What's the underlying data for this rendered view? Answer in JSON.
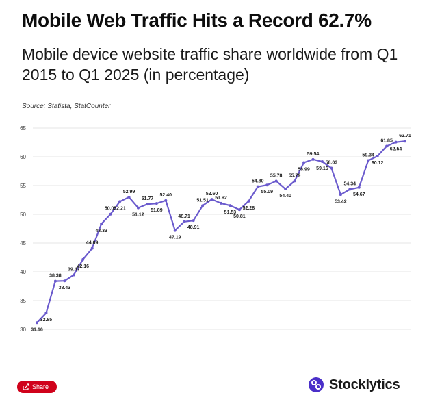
{
  "header": {
    "title": "Mobile Web Traffic Hits a Record 62.7%",
    "subtitle": "Mobile device website traffic share worldwide from Q1 2015 to Q1 2025 (in percentage)",
    "source": "Source; Statista, StatCounter"
  },
  "footer": {
    "share_label": "Share",
    "brand": "Stocklytics"
  },
  "colors": {
    "line": "#6a5acd",
    "grid": "#e6e6e6",
    "share_button": "#d0021b"
  },
  "chart_data": {
    "type": "line",
    "ylim": [
      30,
      65
    ],
    "yticks": [
      30,
      35,
      40,
      45,
      50,
      55,
      60,
      65
    ],
    "grid": "horizontal",
    "legend": "none",
    "x_range": [
      "Q1 2015",
      "Q1 2025"
    ],
    "x_tick_labels": "none",
    "series": [
      {
        "values": [
          31.16,
          32.85,
          38.38,
          38.43,
          39.47,
          42.16,
          44.09,
          48.33,
          50.03,
          52.21,
          52.99,
          51.12,
          51.77,
          51.89,
          52.4,
          47.19,
          48.71,
          48.91,
          51.51,
          52.6,
          51.92,
          51.53,
          50.81,
          52.28,
          54.8,
          55.09,
          55.78,
          54.4,
          55.79,
          58.99,
          59.54,
          59.16,
          58.03,
          53.42,
          54.34,
          54.67,
          59.34,
          60.12,
          61.85,
          62.54,
          62.71
        ],
        "labels": [
          "31.16",
          "32.85",
          "38.38",
          "38.43",
          "39.47",
          "42.16",
          "44.09",
          "48.33",
          "50.03",
          "52.21",
          "52.99",
          "51.12",
          "51.77",
          "51.89",
          "52.40",
          "47.19",
          "48.71",
          "48.91",
          "51.51",
          "52.60",
          "51.92",
          "51.53",
          "50.81",
          "52.28",
          "54.80",
          "55.09",
          "55.78",
          "54.40",
          "55.79",
          "58.99",
          "59.54",
          "59.16",
          "58.03",
          "53.42",
          "54.34",
          "54.67",
          "59.34",
          "60.12",
          "61.85",
          "62.54",
          "62.71"
        ]
      }
    ]
  }
}
